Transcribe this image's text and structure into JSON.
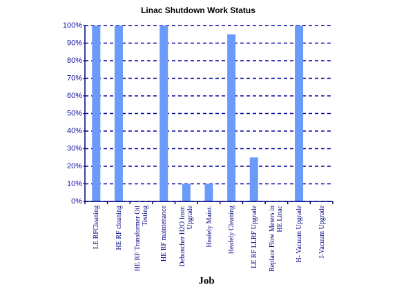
{
  "chart_data": {
    "type": "bar",
    "title": "Linac Shutdown Work Status",
    "x_label": "Job",
    "categories": [
      "LE RFCleaning",
      "HE RF cleaning",
      "HE RF Transformer Oil Testing",
      "HE RF maintenance",
      "Debuncher H2O Instr. Upgrade",
      "Heafely Maint.",
      "Heafely Cleaning",
      "LE RF LLRF Upgrade",
      "Replace Flow Meters in HE Linac",
      "H- Vacuum Upgrade",
      "I-Vacuum Upgrade"
    ],
    "values": [
      100,
      100,
      0,
      100,
      10,
      10,
      95,
      25,
      0,
      100,
      0
    ],
    "color": "#6b9bfa",
    "ylim": [
      0,
      100
    ],
    "yticks": [
      {
        "value": 0,
        "label": "0%"
      },
      {
        "value": 10,
        "label": "10%"
      },
      {
        "value": 20,
        "label": "20%"
      },
      {
        "value": 30,
        "label": "30%"
      },
      {
        "value": 40,
        "label": "40%"
      },
      {
        "value": 50,
        "label": "50%"
      },
      {
        "value": 60,
        "label": "60%"
      },
      {
        "value": 70,
        "label": "70%"
      },
      {
        "value": 80,
        "label": "80%"
      },
      {
        "value": 90,
        "label": "90%"
      },
      {
        "value": 100,
        "label": "100%"
      }
    ],
    "grid": true
  }
}
